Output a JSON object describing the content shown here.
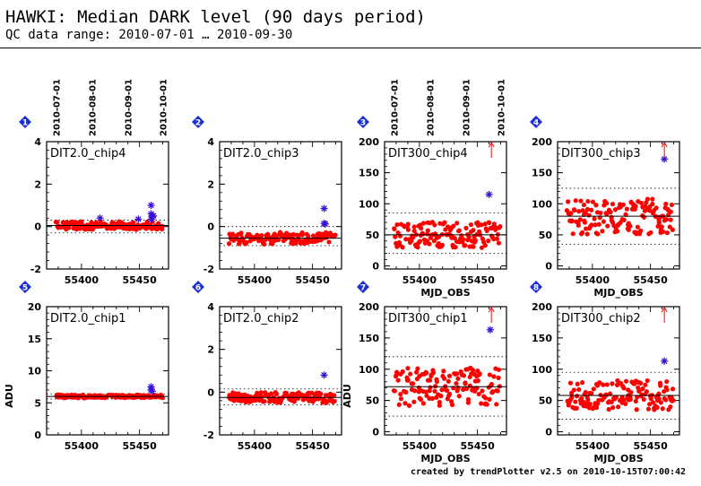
{
  "header": {
    "title": "HAWKI: Median DARK level (90 days period)",
    "subtitle": "QC data range: 2010-07-01 … 2010-09-30"
  },
  "footer": "created by trendPlotter v2.5 on 2010-10-15T07:00:42",
  "colors": {
    "data": "#ff0000",
    "outlier": "#3a10d8",
    "badge": "#1a2fd6",
    "axis": "#000000"
  },
  "date_ticks": [
    "2010-07-01",
    "2010-08-01",
    "2010-09-01",
    "2010-10-01"
  ],
  "chart_data": [
    {
      "id": "1",
      "label": "DIT2.0_chip4",
      "type": "scatter",
      "xlim": [
        55370,
        55475
      ],
      "ylim": [
        -2,
        4
      ],
      "yticks": [
        -2,
        0,
        2,
        4
      ],
      "xticks": [
        55400,
        55450
      ],
      "median": 0.05,
      "dotted": [
        0.3,
        -0.3
      ],
      "top_dates": true,
      "xlabel": "",
      "ylabel": "",
      "outliers": [
        [
          55416,
          0.4
        ],
        [
          55449,
          0.35
        ],
        [
          55460,
          1.0
        ],
        [
          55460,
          0.6
        ],
        [
          55461,
          0.45
        ],
        [
          55460,
          0.35
        ],
        [
          55462,
          0.5
        ]
      ],
      "points": []
    },
    {
      "id": "2",
      "label": "DIT2.0_chip3",
      "type": "scatter",
      "xlim": [
        55370,
        55475
      ],
      "ylim": [
        -2,
        4
      ],
      "yticks": [
        -2,
        0,
        2,
        4
      ],
      "xticks": [
        55400,
        55450
      ],
      "median": -0.55,
      "dotted": [
        0.0,
        -0.9
      ],
      "top_dates": false,
      "xlabel": "",
      "ylabel": "",
      "outliers": [
        [
          55460,
          0.85
        ],
        [
          55460,
          0.15
        ],
        [
          55461,
          0.12
        ]
      ],
      "points": []
    },
    {
      "id": "3",
      "label": "DIT300_chip4",
      "type": "scatter",
      "xlim": [
        55370,
        55475
      ],
      "ylim": [
        -5,
        200
      ],
      "yticks": [
        0,
        50,
        100,
        150,
        200
      ],
      "xticks": [
        55400,
        55450
      ],
      "median": 50,
      "dotted": [
        85,
        20
      ],
      "top_dates": true,
      "xlabel": "MJD_OBS",
      "ylabel": "",
      "arrow_x": 55462,
      "outliers": [
        [
          55460,
          115
        ]
      ],
      "points": []
    },
    {
      "id": "4",
      "label": "DIT300_chip3",
      "type": "scatter",
      "xlim": [
        55370,
        55475
      ],
      "ylim": [
        -5,
        200
      ],
      "yticks": [
        0,
        50,
        100,
        150,
        200
      ],
      "xticks": [
        55400,
        55450
      ],
      "median": 80,
      "dotted": [
        125,
        35
      ],
      "top_dates": false,
      "xlabel": "MJD_OBS",
      "ylabel": "",
      "arrow_x": 55462,
      "outliers": [
        [
          55462,
          172
        ]
      ],
      "points": []
    },
    {
      "id": "5",
      "label": "DIT2.0_chip1",
      "type": "scatter",
      "xlim": [
        55370,
        55475
      ],
      "ylim": [
        0,
        20
      ],
      "yticks": [
        0,
        5,
        10,
        15,
        20
      ],
      "xticks": [
        55400,
        55450
      ],
      "median": 6.0,
      "dotted": [
        6.4,
        5.6
      ],
      "top_dates": false,
      "xlabel": "",
      "ylabel": "ADU",
      "outliers": [
        [
          55460,
          7.5
        ],
        [
          55460,
          7.0
        ],
        [
          55461,
          6.8
        ]
      ],
      "points": []
    },
    {
      "id": "6",
      "label": "DIT2.0_chip2",
      "type": "scatter",
      "xlim": [
        55370,
        55475
      ],
      "ylim": [
        -2,
        4
      ],
      "yticks": [
        -2,
        0,
        2,
        4
      ],
      "xticks": [
        55400,
        55450
      ],
      "median": -0.25,
      "dotted": [
        0.15,
        -0.6
      ],
      "top_dates": false,
      "xlabel": "",
      "ylabel": "",
      "outliers": [
        [
          55460,
          0.8
        ]
      ],
      "points": []
    },
    {
      "id": "7",
      "label": "DIT300_chip1",
      "type": "scatter",
      "xlim": [
        55370,
        55475
      ],
      "ylim": [
        -5,
        200
      ],
      "yticks": [
        0,
        50,
        100,
        150,
        200
      ],
      "xticks": [
        55400,
        55450
      ],
      "median": 72,
      "dotted": [
        120,
        25
      ],
      "top_dates": false,
      "xlabel": "MJD_OBS",
      "ylabel": "ADU",
      "arrow_x": 55462,
      "outliers": [
        [
          55461,
          163
        ]
      ],
      "points": []
    },
    {
      "id": "8",
      "label": "DIT300_chip2",
      "type": "scatter",
      "xlim": [
        55370,
        55475
      ],
      "ylim": [
        -5,
        200
      ],
      "yticks": [
        0,
        50,
        100,
        150,
        200
      ],
      "xticks": [
        55400,
        55450
      ],
      "median": 58,
      "dotted": [
        95,
        20
      ],
      "top_dates": false,
      "xlabel": "MJD_OBS",
      "ylabel": "",
      "arrow_x": 55462,
      "outliers": [
        [
          55462,
          113
        ]
      ],
      "points": []
    }
  ]
}
